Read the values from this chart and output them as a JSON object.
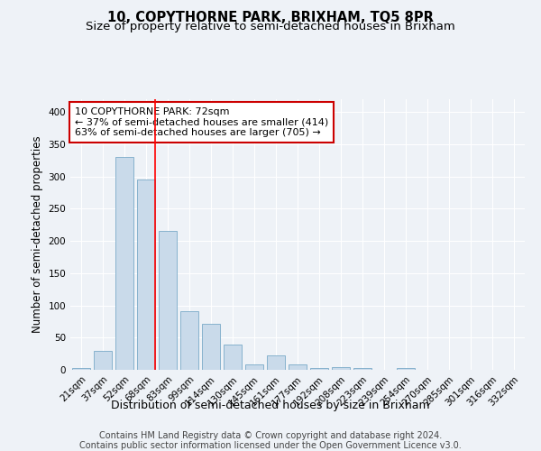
{
  "title": "10, COPYTHORNE PARK, BRIXHAM, TQ5 8PR",
  "subtitle": "Size of property relative to semi-detached houses in Brixham",
  "xlabel": "Distribution of semi-detached houses by size in Brixham",
  "ylabel": "Number of semi-detached properties",
  "categories": [
    "21sqm",
    "37sqm",
    "52sqm",
    "68sqm",
    "83sqm",
    "99sqm",
    "114sqm",
    "130sqm",
    "145sqm",
    "161sqm",
    "177sqm",
    "192sqm",
    "208sqm",
    "223sqm",
    "239sqm",
    "254sqm",
    "270sqm",
    "285sqm",
    "301sqm",
    "316sqm",
    "332sqm"
  ],
  "values": [
    3,
    30,
    330,
    295,
    215,
    91,
    71,
    39,
    9,
    22,
    9,
    3,
    4,
    3,
    0,
    3,
    0,
    0,
    0,
    0,
    0
  ],
  "bar_color": "#c9daea",
  "bar_edge_color": "#7aaac8",
  "red_line_index": 3,
  "annotation_text_line1": "10 COPYTHORNE PARK: 72sqm",
  "annotation_text_line2": "← 37% of semi-detached houses are smaller (414)",
  "annotation_text_line3": "63% of semi-detached houses are larger (705) →",
  "annotation_box_color": "#ffffff",
  "annotation_box_edge_color": "#cc0000",
  "ylim": [
    0,
    420
  ],
  "yticks": [
    0,
    50,
    100,
    150,
    200,
    250,
    300,
    350,
    400
  ],
  "footer_line1": "Contains HM Land Registry data © Crown copyright and database right 2024.",
  "footer_line2": "Contains public sector information licensed under the Open Government Licence v3.0.",
  "bg_color": "#eef2f7",
  "plot_bg_color": "#eef2f7",
  "grid_color": "#ffffff",
  "title_fontsize": 10.5,
  "subtitle_fontsize": 9.5,
  "xlabel_fontsize": 9,
  "ylabel_fontsize": 8.5,
  "tick_fontsize": 7.5,
  "annotation_fontsize": 8,
  "footer_fontsize": 7
}
